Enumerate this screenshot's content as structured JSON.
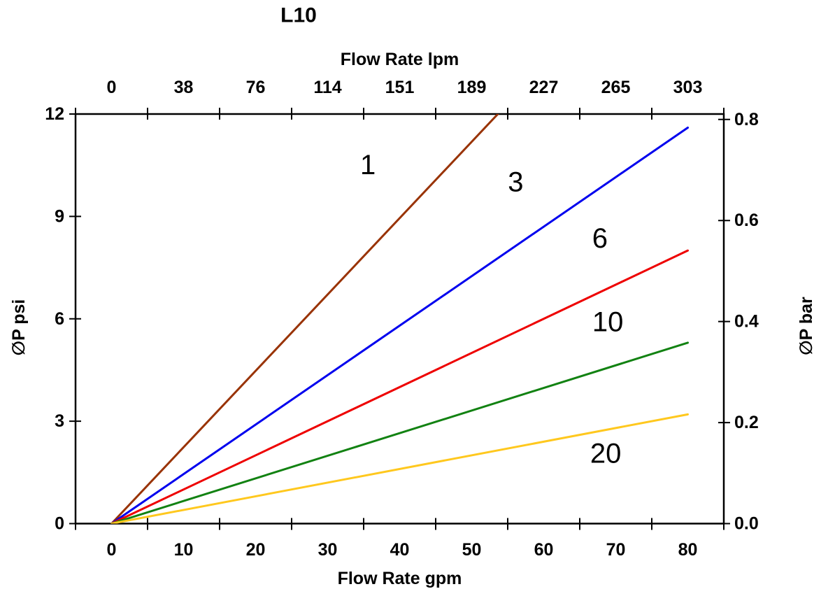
{
  "chart_data": {
    "type": "line",
    "title": "L10",
    "background": "#ffffff",
    "axis_color": "#000000",
    "axes": {
      "top": {
        "label": "Flow Rate lpm",
        "tick_labels": [
          "0",
          "38",
          "76",
          "114",
          "151",
          "189",
          "227",
          "265",
          "303"
        ]
      },
      "bottom": {
        "label": "Flow Rate gpm",
        "tick_labels": [
          "0",
          "10",
          "20",
          "30",
          "40",
          "50",
          "60",
          "70",
          "80"
        ],
        "tick_values": [
          0,
          10,
          20,
          30,
          40,
          50,
          60,
          70,
          80
        ]
      },
      "left": {
        "label": "∅P psi",
        "tick_labels": [
          "0",
          "3",
          "6",
          "9",
          "12"
        ],
        "tick_values": [
          0,
          3,
          6,
          9,
          12
        ],
        "range": [
          0,
          12
        ]
      },
      "right": {
        "label": "∅P bar",
        "tick_labels": [
          "0.0",
          "0.2",
          "0.4",
          "0.6",
          "0.8"
        ],
        "tick_values": [
          0,
          0.2,
          0.4,
          0.6,
          0.8
        ],
        "psi_per_bar": 14.8
      }
    },
    "x_range_gpm": [
      0,
      80
    ],
    "grid": false,
    "legend": "inline-labels",
    "series": [
      {
        "name": "1",
        "color": "#993305",
        "points_gpm_psi": [
          [
            0,
            0
          ],
          [
            80,
            17.9
          ]
        ],
        "clipped_at_top": true,
        "label": {
          "text": "1",
          "x_gpm": 35.6,
          "y_psi": 10.5
        }
      },
      {
        "name": "3",
        "color": "#0000EE",
        "points_gpm_psi": [
          [
            0,
            0
          ],
          [
            80,
            11.6
          ]
        ],
        "label": {
          "text": "3",
          "x_gpm": 56.1,
          "y_psi": 10.0
        }
      },
      {
        "name": "6",
        "color": "#EE0000",
        "points_gpm_psi": [
          [
            0,
            0
          ],
          [
            80,
            8.0
          ]
        ],
        "label": {
          "text": "6",
          "x_gpm": 67.8,
          "y_psi": 8.35
        }
      },
      {
        "name": "10",
        "color": "#128212",
        "points_gpm_psi": [
          [
            0,
            0
          ],
          [
            80,
            5.3
          ]
        ],
        "label": {
          "text": "10",
          "x_gpm": 68.9,
          "y_psi": 5.9
        }
      },
      {
        "name": "20",
        "color": "#FFC81E",
        "points_gpm_psi": [
          [
            0,
            0
          ],
          [
            80,
            3.2
          ]
        ],
        "label": {
          "text": "20",
          "x_gpm": 68.6,
          "y_psi": 2.05
        }
      }
    ]
  }
}
